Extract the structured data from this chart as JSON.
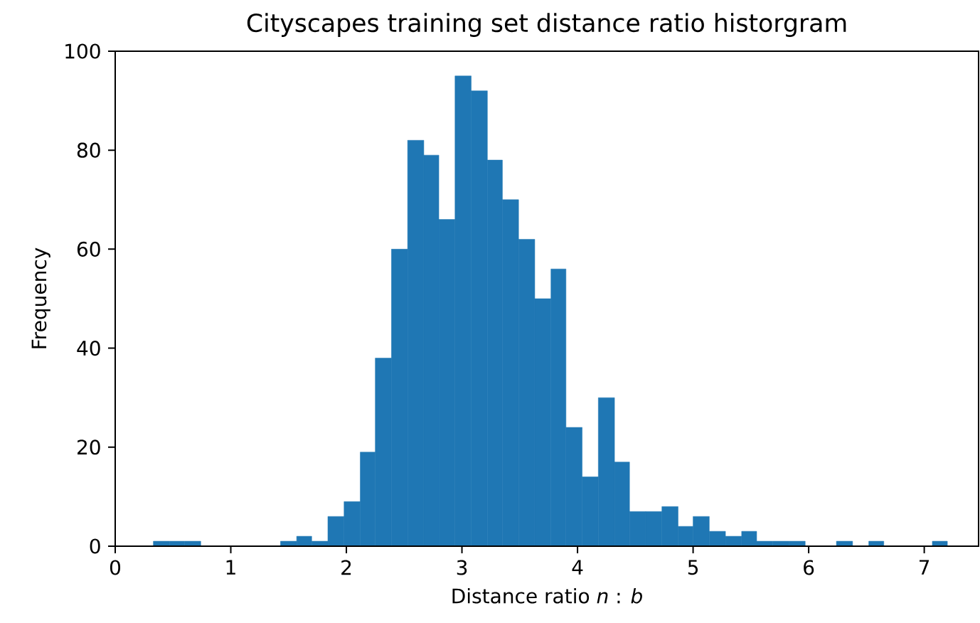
{
  "chart_data": {
    "type": "histogram",
    "title": "Cityscapes training set distance ratio historgram",
    "xlabel": "Distance ratio *n* : *b*",
    "ylabel": "Frequency",
    "color": "#1f77b4",
    "bins": [
      0.33,
      0.47,
      0.6,
      0.74,
      1.43,
      1.57,
      1.7,
      1.84,
      1.98,
      2.12,
      2.25,
      2.39,
      2.53,
      2.67,
      2.8,
      2.94,
      3.08,
      3.22,
      3.35,
      3.49,
      3.63,
      3.77,
      3.9,
      4.04,
      4.18,
      4.32,
      4.45,
      4.59,
      4.73,
      4.87,
      5.0,
      5.14,
      5.28,
      5.42,
      5.55,
      5.69,
      5.83,
      5.97,
      6.24,
      6.38,
      6.52,
      6.65,
      7.07,
      7.2
    ],
    "values": [
      1,
      1,
      1,
      0,
      1,
      2,
      1,
      6,
      9,
      19,
      38,
      60,
      82,
      79,
      66,
      95,
      92,
      78,
      70,
      62,
      50,
      56,
      24,
      14,
      30,
      17,
      7,
      7,
      8,
      4,
      6,
      3,
      2,
      3,
      1,
      1,
      1,
      0,
      1,
      0,
      1,
      0,
      1
    ],
    "xlim": [
      0,
      7.47
    ],
    "ylim": [
      0,
      100
    ],
    "xticks": [
      0,
      1,
      2,
      3,
      4,
      5,
      6,
      7
    ],
    "yticks": [
      0,
      20,
      40,
      60,
      80,
      100
    ],
    "grid": false
  }
}
